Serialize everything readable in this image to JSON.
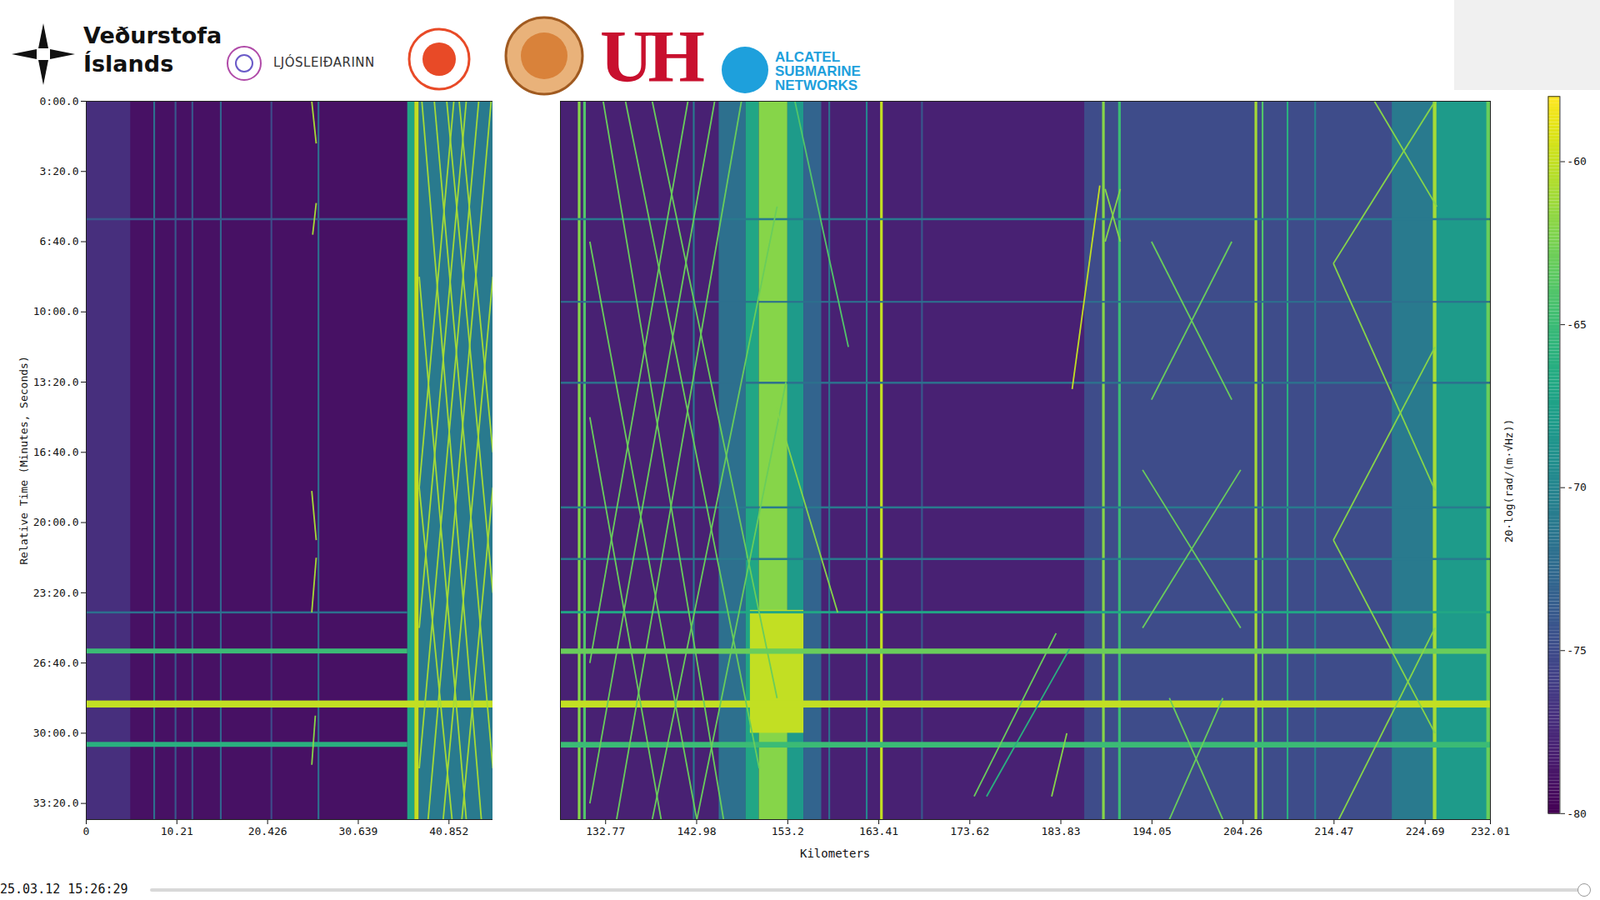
{
  "logos": [
    {
      "lines": [
        "Veðurstofa",
        "Íslands"
      ]
    },
    {
      "lines": [
        "LJÓSLEIÐARINN"
      ]
    },
    {
      "lines": [
        "UH"
      ]
    },
    {
      "lines": [
        "ALCATEL",
        "SUBMARINE",
        "NETWORKS"
      ]
    }
  ],
  "timestamp": "25.03.12 15:26:29",
  "chart_data": {
    "type": "heatmap",
    "x_label": "Kilometers",
    "y_label": "Relative Time (Minutes, Seconds)",
    "panels": [
      {
        "xlim": [
          0,
          45.8
        ],
        "xticks": [
          0,
          10.21,
          20.426,
          30.639,
          40.852
        ]
      },
      {
        "xlim": [
          127.7,
          232.01
        ],
        "xticks": [
          132.77,
          142.98,
          153.2,
          163.41,
          173.62,
          183.83,
          194.05,
          204.26,
          214.47,
          224.69,
          232.01
        ]
      }
    ],
    "ylim": [
      0,
      2046
    ],
    "yticks": [
      {
        "value": 0,
        "label": "0:00.0"
      },
      {
        "value": 200,
        "label": "3:20.0"
      },
      {
        "value": 400,
        "label": "6:40.0"
      },
      {
        "value": 600,
        "label": "10:00.0"
      },
      {
        "value": 800,
        "label": "13:20.0"
      },
      {
        "value": 1000,
        "label": "16:40.0"
      },
      {
        "value": 1200,
        "label": "20:00.0"
      },
      {
        "value": 1400,
        "label": "23:20.0"
      },
      {
        "value": 1600,
        "label": "26:40.0"
      },
      {
        "value": 1800,
        "label": "30:00.0"
      },
      {
        "value": 2000,
        "label": "33:20.0"
      }
    ],
    "colorbar": {
      "label": "20·log(rad/(m·√Hz))",
      "range": [
        -80,
        -58
      ],
      "ticks": [
        -60,
        -65,
        -70,
        -75,
        -80
      ],
      "color": "viridis"
    },
    "cells": [
      [
        0,
        45.8,
        0,
        2046,
        -79
      ],
      [
        0,
        5,
        0,
        2046,
        -77
      ],
      [
        7.6,
        7.8,
        0,
        2046,
        -72
      ],
      [
        10.0,
        10.2,
        0,
        2046,
        -74
      ],
      [
        11.9,
        12.1,
        0,
        2046,
        -74
      ],
      [
        15.1,
        15.3,
        0,
        2046,
        -73
      ],
      [
        20.8,
        21.0,
        0,
        2046,
        -75
      ],
      [
        26.1,
        26.3,
        0,
        2046,
        -72
      ],
      [
        36.2,
        37.0,
        0,
        2046,
        -67
      ],
      [
        37.0,
        37.5,
        0,
        2046,
        -60
      ],
      [
        37.5,
        45.8,
        0,
        2046,
        -71
      ],
      [
        127.7,
        232.01,
        0,
        2046,
        -78
      ],
      [
        129.7,
        130.0,
        0,
        2046,
        -62
      ],
      [
        130.3,
        130.6,
        0,
        2046,
        -64
      ],
      [
        142.6,
        142.8,
        0,
        2046,
        -71
      ],
      [
        145.5,
        148.5,
        0,
        2046,
        -72
      ],
      [
        148.5,
        150.0,
        0,
        2046,
        -67
      ],
      [
        150.0,
        153.2,
        0,
        2046,
        -62
      ],
      [
        153.2,
        155.0,
        0,
        2046,
        -68
      ],
      [
        155.0,
        157.0,
        0,
        2046,
        -73
      ],
      [
        157.8,
        158.0,
        0,
        2046,
        -72
      ],
      [
        162.0,
        162.2,
        0,
        2046,
        -70
      ],
      [
        163.6,
        163.9,
        0,
        2046,
        -60
      ],
      [
        168.2,
        168.4,
        0,
        2046,
        -74
      ],
      [
        186.5,
        225.7,
        0,
        2046,
        -75
      ],
      [
        188.5,
        188.8,
        0,
        2046,
        -62
      ],
      [
        190.3,
        190.6,
        0,
        2046,
        -65
      ],
      [
        205.6,
        205.9,
        0,
        2046,
        -61
      ],
      [
        206.4,
        206.6,
        0,
        2046,
        -64
      ],
      [
        209.2,
        209.4,
        0,
        2046,
        -66
      ],
      [
        212.3,
        212.5,
        0,
        2046,
        -70
      ],
      [
        221.0,
        225.7,
        0,
        2046,
        -71
      ],
      [
        225.7,
        232.01,
        0,
        2046,
        -68
      ],
      [
        225.6,
        226.0,
        0,
        2046,
        -61
      ],
      [
        231.6,
        232.01,
        0,
        2046,
        -63
      ],
      [
        149,
        155,
        1450,
        1800,
        -60
      ],
      [
        0,
        36.2,
        334,
        340,
        -74
      ],
      [
        0,
        36.2,
        1454,
        1460,
        -72
      ],
      [
        0,
        36.2,
        1560,
        1574,
        -65
      ],
      [
        0,
        45.8,
        1708,
        1728,
        -60
      ],
      [
        0,
        36.2,
        1826,
        1840,
        -66
      ],
      [
        127.7,
        232.01,
        334,
        340,
        -71
      ],
      [
        127.7,
        232.01,
        570,
        575,
        -72
      ],
      [
        127.7,
        232.01,
        800,
        806,
        -72
      ],
      [
        127.7,
        232.01,
        1155,
        1161,
        -71
      ],
      [
        127.7,
        232.01,
        1302,
        1308,
        -71
      ],
      [
        127.7,
        232.01,
        1453,
        1460,
        -67
      ],
      [
        127.7,
        232.01,
        1560,
        1575,
        -63
      ],
      [
        127.7,
        232.01,
        1708,
        1728,
        -60
      ],
      [
        127.7,
        232.01,
        1826,
        1842,
        -65
      ]
    ],
    "streaks": [
      [
        25.4,
        0,
        25.9,
        120,
        -61
      ],
      [
        25.9,
        290,
        25.5,
        380,
        -61
      ],
      [
        25.4,
        1110,
        25.9,
        1250,
        -61
      ],
      [
        25.9,
        1300,
        25.4,
        1456,
        -61
      ],
      [
        25.8,
        1750,
        25.4,
        1890,
        -62
      ],
      [
        37.8,
        0,
        44.5,
        2046,
        -61
      ],
      [
        39.2,
        0,
        45.8,
        1900,
        -61
      ],
      [
        40.6,
        0,
        45.8,
        1400,
        -61
      ],
      [
        42.0,
        0,
        45.8,
        1000,
        -61
      ],
      [
        37.5,
        500,
        42.8,
        2046,
        -61
      ],
      [
        37.5,
        1100,
        41.2,
        2046,
        -61
      ],
      [
        45.6,
        0,
        38.5,
        2046,
        -61
      ],
      [
        44.2,
        0,
        37.5,
        1900,
        -61
      ],
      [
        42.8,
        0,
        37.5,
        1500,
        -61
      ],
      [
        41.4,
        0,
        37.5,
        1100,
        -61
      ],
      [
        45.8,
        500,
        40.2,
        2046,
        -61
      ],
      [
        45.8,
        1100,
        42.3,
        2046,
        -61
      ],
      [
        132.5,
        0,
        146,
        2046,
        -63
      ],
      [
        135,
        0,
        150,
        1900,
        -63
      ],
      [
        138,
        0,
        152,
        1700,
        -63
      ],
      [
        131,
        400,
        143,
        2046,
        -63
      ],
      [
        131,
        900,
        139,
        2046,
        -63
      ],
      [
        148,
        0,
        134,
        2046,
        -63
      ],
      [
        145,
        0,
        131,
        2000,
        -63
      ],
      [
        142,
        0,
        131,
        1600,
        -63
      ],
      [
        152,
        300,
        138,
        2046,
        -63
      ],
      [
        153,
        800,
        143,
        2046,
        -63
      ],
      [
        151.9,
        873,
        158.8,
        1456,
        -62
      ],
      [
        154,
        0,
        160,
        700,
        -64
      ],
      [
        188.2,
        240,
        185.1,
        820,
        -60
      ],
      [
        174.1,
        1980,
        183.3,
        1515,
        -63
      ],
      [
        175.5,
        1980,
        184.8,
        1560,
        -66
      ],
      [
        182.8,
        1980,
        184.5,
        1800,
        -62
      ],
      [
        188.8,
        250,
        190.5,
        400,
        -62
      ],
      [
        190.5,
        250,
        188.8,
        400,
        -62
      ],
      [
        194,
        400,
        203,
        850,
        -63
      ],
      [
        203,
        400,
        194,
        850,
        -63
      ],
      [
        193,
        1050,
        204,
        1500,
        -63
      ],
      [
        204,
        1050,
        193,
        1500,
        -63
      ],
      [
        196,
        1700,
        202,
        2046,
        -63
      ],
      [
        202,
        1700,
        196,
        2046,
        -63
      ],
      [
        214.4,
        462,
        225.8,
        0,
        -62
      ],
      [
        214.4,
        462,
        225.8,
        1108,
        -62
      ],
      [
        214.4,
        1250,
        225.8,
        700,
        -62
      ],
      [
        214.4,
        1250,
        225.8,
        1800,
        -62
      ],
      [
        215,
        2046,
        225.8,
        1500,
        -62
      ],
      [
        219,
        0,
        226,
        300,
        -62
      ]
    ]
  }
}
